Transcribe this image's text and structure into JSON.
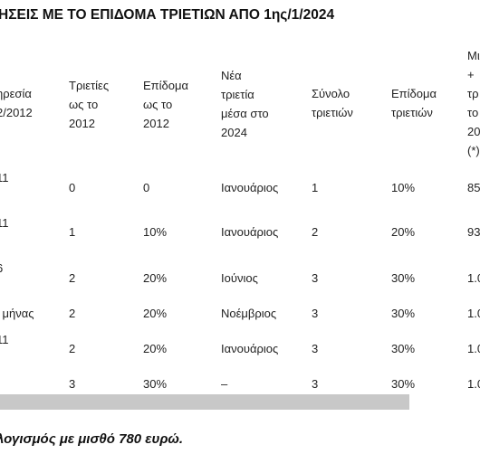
{
  "title": "ΗΣΕΙΣ ΜΕ ΤΟ ΕΠΙΔΟΜΑ ΤΡΙΕΤΙΩΝ ΑΠΟ 1ης/1/2024",
  "table": {
    "header": [
      [
        "ηρεσία",
        "2/2012"
      ],
      [
        "Τριετίες",
        "ως το",
        "2012"
      ],
      [
        "Επίδομα",
        "ως το",
        "2012"
      ],
      [
        "Νέα",
        "τριετία",
        "μέσα στο",
        "2024"
      ],
      [
        "Σύνολο",
        "τριετιών"
      ],
      [
        "Επίδομα",
        "τριετιών"
      ],
      [
        "Μι",
        "+",
        "τρ",
        "το",
        "20",
        "(*)"
      ]
    ],
    "rows": [
      [
        "11",
        "0",
        "0",
        "Ιανουάριος",
        "1",
        "10%",
        "85"
      ],
      [
        "11",
        "1",
        "10%",
        "Ιανουάριος",
        "2",
        "20%",
        "93"
      ],
      [
        "6",
        "2",
        "20%",
        "Ιούνιος",
        "3",
        "30%",
        "1.0"
      ],
      [
        "ι μήνας",
        "2",
        "20%",
        "Νοέμβριος",
        "3",
        "30%",
        "1.0"
      ],
      [
        "11",
        "2",
        "20%",
        "Ιανουάριος",
        "3",
        "30%",
        "1.0"
      ],
      [
        null,
        "3",
        "30%",
        "–",
        "3",
        "30%",
        "1.0"
      ]
    ]
  },
  "note": "λογισμός με μισθό 780 ευρώ."
}
